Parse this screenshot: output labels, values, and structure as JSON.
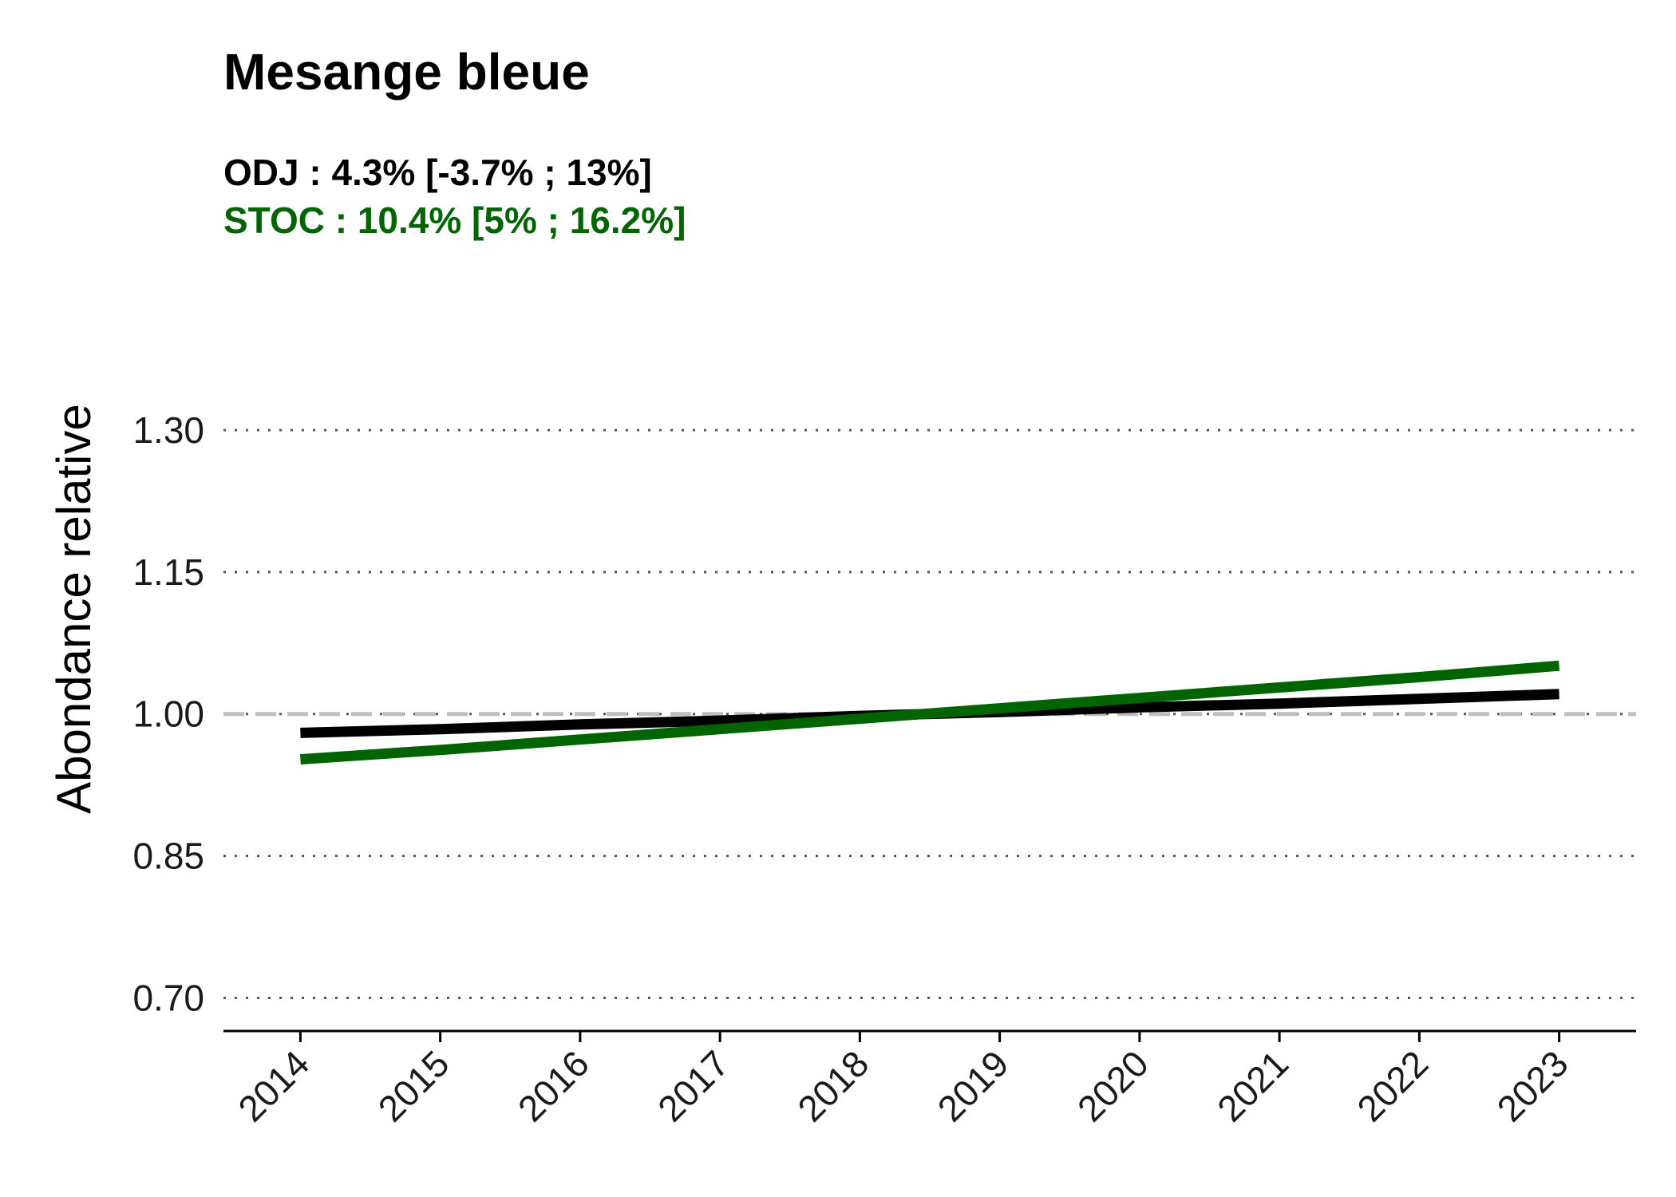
{
  "chart_data": {
    "type": "line",
    "title": "Mesange bleue",
    "subtitles": [
      {
        "text": "ODJ : 4.3% [-3.7% ; 13%]",
        "color": "#000000"
      },
      {
        "text": "STOC : 10.4% [5% ; 16.2%]",
        "color": "#006400"
      }
    ],
    "xlabel": "",
    "ylabel": "Abondance relative",
    "x": [
      2014,
      2015,
      2016,
      2017,
      2018,
      2019,
      2020,
      2021,
      2022,
      2023
    ],
    "y_ticks": [
      "0.70",
      "0.85",
      "1.00",
      "1.15",
      "1.30"
    ],
    "ylim": [
      0.665,
      1.375
    ],
    "xlim": [
      2013.45,
      2023.55
    ],
    "reference_line": {
      "y": 1.0,
      "color": "#bebebe",
      "style": "dashed"
    },
    "grid": {
      "y": true,
      "x": false,
      "style": "dotted"
    },
    "series": [
      {
        "name": "ODJ",
        "color": "#000000",
        "values": [
          0.98,
          0.984,
          0.989,
          0.993,
          0.998,
          1.002,
          1.007,
          1.011,
          1.016,
          1.021
        ]
      },
      {
        "name": "STOC",
        "color": "#006400",
        "values": [
          0.952,
          0.962,
          0.973,
          0.984,
          0.995,
          1.006,
          1.017,
          1.028,
          1.039,
          1.051
        ]
      }
    ]
  }
}
